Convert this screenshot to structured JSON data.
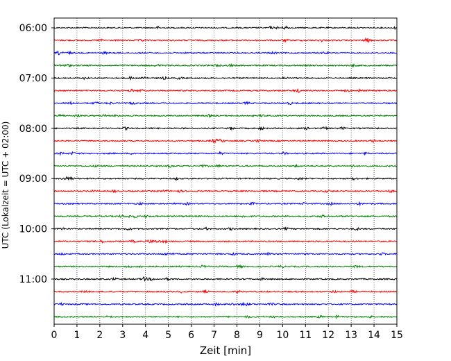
{
  "chart_data": {
    "type": "line",
    "title": "",
    "xlabel": "Zeit  [min]",
    "ylabel": "UTC (Lokalzeit = UTC + 02:00)",
    "xlim": [
      0,
      15
    ],
    "x_ticks": [
      "0",
      "1",
      "2",
      "3",
      "4",
      "5",
      "6",
      "7",
      "8",
      "9",
      "10",
      "11",
      "12",
      "13",
      "14",
      "15"
    ],
    "y_ticks": [
      {
        "label": "06:00",
        "row": 0
      },
      {
        "label": "07:00",
        "row": 4
      },
      {
        "label": "08:00",
        "row": 8
      },
      {
        "label": "09:00",
        "row": 12
      },
      {
        "label": "10:00",
        "row": 16
      },
      {
        "label": "11:00",
        "row": 20
      }
    ],
    "row_start_times": [
      "06:00",
      "06:15",
      "06:30",
      "06:45",
      "07:00",
      "07:15",
      "07:30",
      "07:45",
      "08:00",
      "08:15",
      "08:30",
      "08:45",
      "09:00",
      "09:15",
      "09:30",
      "09:45",
      "10:00",
      "10:15",
      "10:30",
      "10:45",
      "11:00",
      "11:15",
      "11:30",
      "11:45"
    ],
    "row_colors": [
      "#000000",
      "#ff0000",
      "#0000ff",
      "#008000"
    ],
    "vertical_grid": "dotted, every 1 min",
    "legend": "none"
  }
}
